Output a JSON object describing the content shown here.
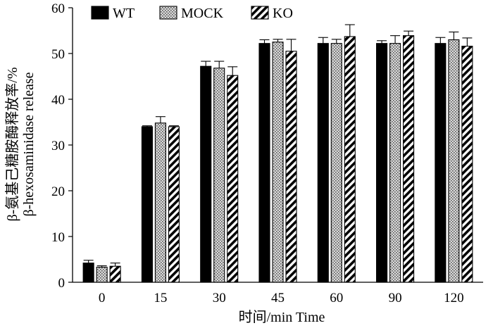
{
  "chart_data": {
    "type": "bar",
    "categories": [
      "0",
      "15",
      "30",
      "45",
      "60",
      "90",
      "120"
    ],
    "series": [
      {
        "name": "WT",
        "values": [
          4.2,
          34.0,
          47.2,
          52.2,
          52.2,
          52.2,
          52.2
        ],
        "errors": [
          0.6,
          0.2,
          1.1,
          0.8,
          1.3,
          0.6,
          1.3
        ],
        "fill": "solid"
      },
      {
        "name": "MOCK",
        "values": [
          3.3,
          34.8,
          46.8,
          52.5,
          52.2,
          52.2,
          53.0
        ],
        "errors": [
          0.3,
          1.4,
          1.5,
          0.6,
          0.9,
          1.7,
          1.7
        ],
        "fill": "dotted"
      },
      {
        "name": "KO",
        "values": [
          3.5,
          34.0,
          45.2,
          50.5,
          53.7,
          53.9,
          51.6
        ],
        "errors": [
          0.7,
          0.2,
          1.9,
          2.6,
          2.6,
          1.0,
          1.8
        ],
        "fill": "hatched"
      }
    ],
    "title": "",
    "xlabel": "时间/min Time",
    "ylabel_lines": [
      "β-氨基己糖胺酶释放率/%",
      "β-hexosaminidase release"
    ],
    "ylim": [
      0,
      60
    ],
    "yticks": [
      0,
      10,
      20,
      30,
      40,
      50,
      60
    ],
    "grid": false,
    "legend_position": "top-left",
    "colors": {
      "bar_edge": "#000000",
      "solid_fill": "#000000",
      "dotted_fill": "#cccccc",
      "hatch_fill": "#ffffff"
    }
  }
}
